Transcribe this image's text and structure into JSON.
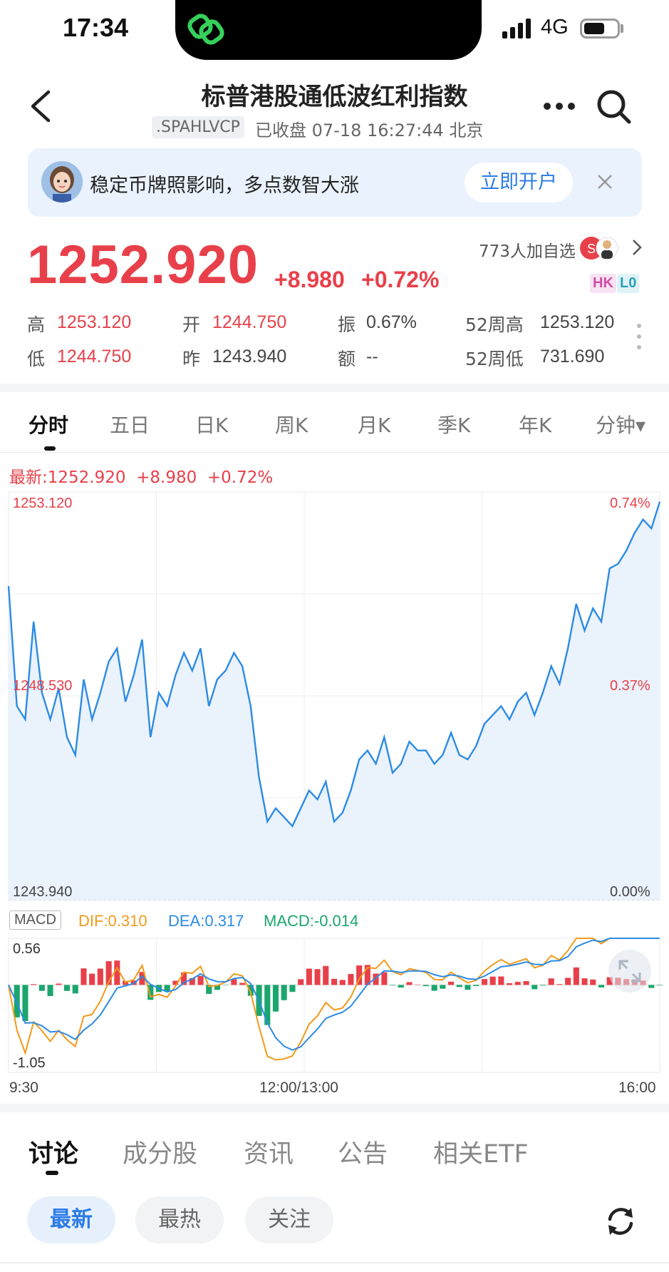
{
  "status_bar": {
    "time": "17:34",
    "network": "4G"
  },
  "header": {
    "title": "标普港股通低波红利指数",
    "code": ".SPAHLVCP",
    "status": "已收盘 07-18 16:27:44 北京"
  },
  "banner": {
    "text": "稳定币牌照影响，多点数智大涨",
    "button": "立即开户"
  },
  "quote": {
    "price": "1252.920",
    "change": "+8.980",
    "change_pct": "+0.72%",
    "watchers": "773人加自选",
    "tags": [
      "HK",
      "L0"
    ],
    "stats": {
      "high_label": "高",
      "high": "1253.120",
      "open_label": "开",
      "open": "1244.750",
      "amp_label": "振",
      "amp": "0.67%",
      "w52_high_label": "52周高",
      "w52_high": "1253.120",
      "low_label": "低",
      "low": "1244.750",
      "prev_label": "昨",
      "prev": "1243.940",
      "amount_label": "额",
      "amount": "--",
      "w52_low_label": "52周低",
      "w52_low": "731.690"
    }
  },
  "chart_tabs": [
    "分时",
    "五日",
    "日K",
    "周K",
    "月K",
    "季K",
    "年K",
    "分钟▾"
  ],
  "chart_data": {
    "type": "line",
    "latest_line": "最新:1252.920  +8.980  +0.72%",
    "y_labels_left": [
      "1253.120",
      "1248.530",
      "1243.940"
    ],
    "y_labels_right": [
      "0.74%",
      "0.37%",
      "0.00%"
    ],
    "ylim": [
      1243.94,
      1253.12
    ],
    "x_labels": [
      "9:30",
      "12:00/13:00",
      "16:00"
    ],
    "price_series": [
      1251.0,
      1248.3,
      1248.0,
      1250.2,
      1248.6,
      1248.0,
      1248.7,
      1247.6,
      1247.2,
      1248.9,
      1248.0,
      1248.6,
      1249.3,
      1249.6,
      1248.4,
      1249.0,
      1249.8,
      1247.6,
      1248.6,
      1248.3,
      1249.0,
      1249.5,
      1249.1,
      1249.6,
      1248.3,
      1248.9,
      1249.1,
      1249.5,
      1249.2,
      1248.3,
      1246.7,
      1245.7,
      1246.0,
      1245.8,
      1245.6,
      1246.0,
      1246.4,
      1246.2,
      1246.6,
      1245.7,
      1245.9,
      1246.4,
      1247.1,
      1247.3,
      1247.0,
      1247.6,
      1246.8,
      1247.0,
      1247.5,
      1247.3,
      1247.3,
      1247.0,
      1247.2,
      1247.7,
      1247.2,
      1247.1,
      1247.4,
      1247.9,
      1248.1,
      1248.3,
      1248.0,
      1248.4,
      1248.6,
      1248.1,
      1248.6,
      1249.2,
      1248.8,
      1249.6,
      1250.6,
      1250.0,
      1250.5,
      1250.2,
      1251.4,
      1251.5,
      1251.8,
      1252.2,
      1252.5,
      1252.3,
      1252.9
    ],
    "macd": {
      "label": "MACD",
      "dif": "DIF:0.310",
      "dea": "DEA:0.317",
      "macd": "MACD:-0.014",
      "ymax_label": "0.56",
      "ymin_label": "-1.05",
      "ylim": [
        -1.05,
        0.56
      ]
    },
    "colors": {
      "price": "#2c8be5",
      "up": "#e8404a",
      "down": "#1aa66c",
      "dif": "#f29a1a",
      "dea": "#2c8be5"
    }
  },
  "bottom_tabs": [
    "讨论",
    "成分股",
    "资讯",
    "公告",
    "相关ETF"
  ],
  "filters": [
    "最新",
    "最热",
    "关注"
  ]
}
